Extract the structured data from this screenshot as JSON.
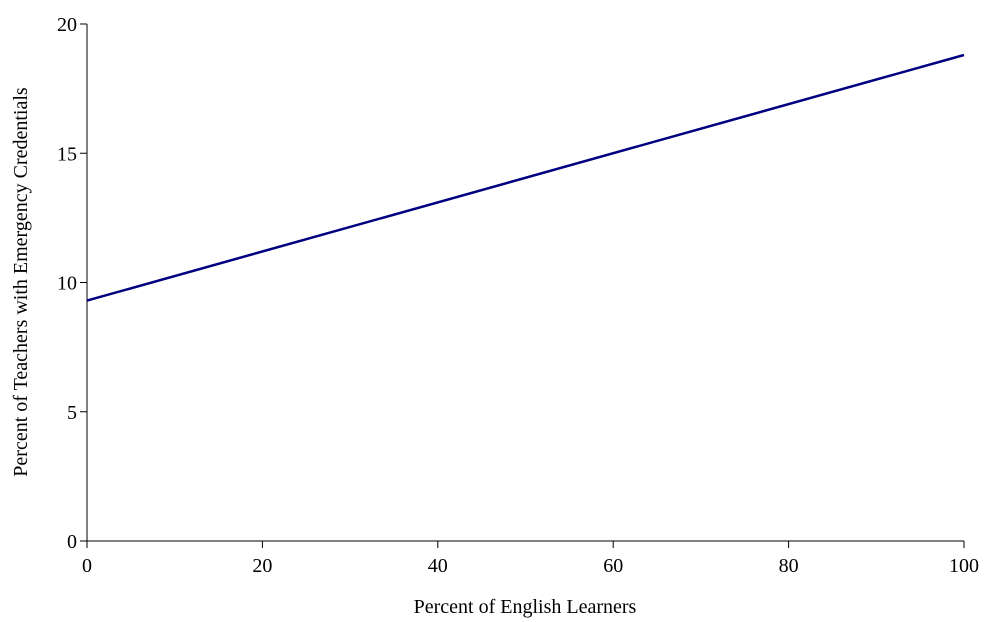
{
  "chart_data": {
    "type": "line",
    "title": "",
    "xlabel": "Percent of English Learners",
    "ylabel": "Percent of Teachers with Emergency Credentials",
    "xlim": [
      0,
      100
    ],
    "ylim": [
      0,
      20
    ],
    "x_ticks": [
      "0",
      "20",
      "40",
      "60",
      "80",
      "100"
    ],
    "y_ticks": [
      "0",
      "5",
      "10",
      "15",
      "20"
    ],
    "grid": false,
    "legend": "none",
    "series": [
      {
        "color": "#000080",
        "x": [
          0,
          100
        ],
        "y": [
          9.3,
          18.8
        ]
      }
    ]
  }
}
